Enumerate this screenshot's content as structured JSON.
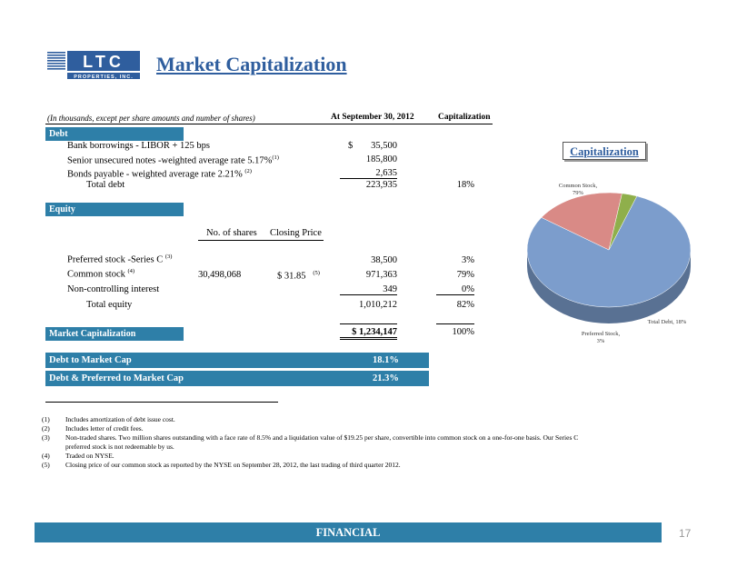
{
  "logo": {
    "name": "LTC",
    "tagline": "PROPERTIES, INC."
  },
  "title": "Market Capitalization",
  "header": {
    "note": "(In thousands, except per share amounts and number of shares)",
    "col1": "At September 30, 2012",
    "col2": "Capitalization"
  },
  "debt": {
    "section_label": "Debt",
    "rows": [
      {
        "label": "Bank borrowings - LIBOR + 125 bps",
        "sup": "",
        "currency": "$",
        "amount": "35,500",
        "pct": ""
      },
      {
        "label": "Senior unsecured notes -weighted average rate 5.17%",
        "sup": "(1)",
        "currency": "",
        "amount": "185,800",
        "pct": ""
      },
      {
        "label": "Bonds payable  - weighted average rate 2.21%",
        "sup": "(2)",
        "currency": "",
        "amount": "2,635",
        "pct": ""
      }
    ],
    "total_label": "Total debt",
    "total_amount": "223,935",
    "total_pct": "18%"
  },
  "equity": {
    "section_label": "Equity",
    "col_shares": "No. of shares",
    "col_price": "Closing Price",
    "rows": [
      {
        "label": "Preferred stock -Series C",
        "sup": "(3)",
        "shares": "",
        "price": "",
        "price_sup": "",
        "amount": "38,500",
        "pct": "3%"
      },
      {
        "label": "Common stock",
        "sup": "(4)",
        "shares": "30,498,068",
        "price": "$  31.85",
        "price_sup": "(5)",
        "amount": "971,363",
        "pct": "79%"
      },
      {
        "label": "Non-controlling interest",
        "sup": "",
        "shares": "",
        "price": "",
        "price_sup": "",
        "amount": "349",
        "pct": "0%"
      }
    ],
    "total_label": "Total equity",
    "total_amount": "1,010,212",
    "total_pct": "82%"
  },
  "market_cap": {
    "label": "Market Capitalization",
    "amount": "$  1,234,147",
    "pct": "100%"
  },
  "ratios": [
    {
      "label": "Debt to Market Cap",
      "value": "18.1%"
    },
    {
      "label": "Debt & Preferred to Market Cap",
      "value": "21.3%"
    }
  ],
  "footnotes": [
    {
      "n": "(1)",
      "text": "Includes amortization of debt issue cost."
    },
    {
      "n": "(2)",
      "text": "Includes letter of credit fees."
    },
    {
      "n": "(3)",
      "text": "Non-traded shares.  Two million shares outstanding with a face rate of 8.5% and a liquidation value of $19.25 per share, convertible into common stock on a one-for-one basis.  Our Series C"
    },
    {
      "n": "",
      "text": "preferred stock is not redeemable by us."
    },
    {
      "n": "(4)",
      "text": "Traded on NYSE."
    },
    {
      "n": "(5)",
      "text": "Closing price of our common stock as reported by the NYSE on September 28, 2012, the last trading of third quarter 2012."
    }
  ],
  "chart_data": {
    "type": "pie",
    "title": "Capitalization",
    "slices": [
      {
        "label": "Common Stock, 79%",
        "value": 79,
        "color": "#7C9DCC"
      },
      {
        "label": "Total Debt, 18%",
        "value": 18,
        "color": "#D98A86"
      },
      {
        "label": "Preferred Stock, 3%",
        "value": 3,
        "color": "#8FAF4B"
      }
    ]
  },
  "footer": {
    "label": "FINANCIAL",
    "page": "17"
  },
  "colors": {
    "bar": "#2E7FA8",
    "title": "#2F5E9E"
  }
}
